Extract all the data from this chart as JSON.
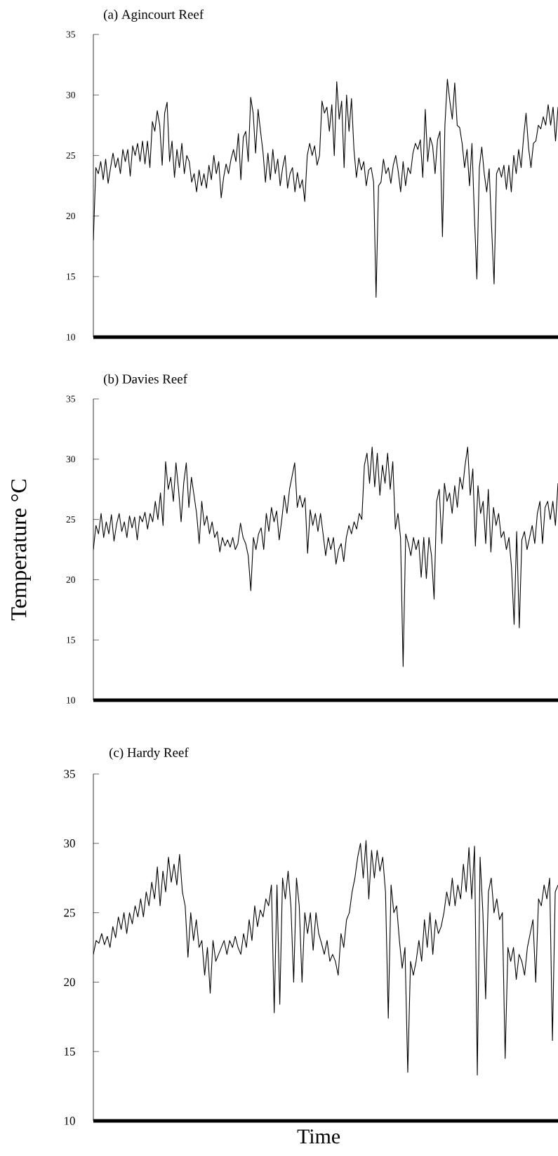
{
  "chart_data": [
    {
      "type": "line",
      "title": "(a) Agincourt Reef",
      "color": "#000000",
      "ylim": [
        10,
        35
      ],
      "yticks": [
        10,
        15,
        20,
        25,
        30,
        35
      ],
      "tick_labels": "y",
      "categories": [
        null,
        null,
        null,
        null,
        null,
        null,
        null,
        null,
        null,
        null,
        null,
        null,
        null,
        null,
        null,
        null,
        null,
        null,
        null,
        null,
        null,
        null,
        null,
        null,
        null,
        null,
        null,
        null,
        null,
        null,
        null,
        null,
        null,
        null,
        null,
        null,
        null,
        null,
        null,
        null,
        null,
        null,
        null,
        null,
        null,
        null,
        null,
        null,
        null,
        null,
        null,
        null,
        null,
        null,
        null,
        null,
        null,
        null,
        null,
        null,
        null,
        null,
        null,
        null,
        null,
        null,
        null,
        null,
        null,
        null,
        null,
        null,
        null,
        null,
        null,
        null,
        null,
        null,
        null,
        null,
        null,
        null,
        null,
        null,
        null,
        null,
        null,
        null,
        null,
        null,
        null,
        null,
        null,
        null,
        null,
        null,
        null,
        null,
        null,
        null,
        null,
        null,
        null,
        null,
        null,
        null,
        null,
        null,
        null,
        null,
        null,
        null,
        null,
        null,
        null,
        null,
        null,
        null,
        null,
        null,
        null,
        null,
        null,
        null,
        null,
        null,
        null,
        null,
        null,
        null,
        null,
        null,
        null,
        null,
        null,
        null,
        null,
        null,
        null,
        null,
        null,
        null,
        null,
        null,
        null,
        null,
        null,
        null,
        null,
        null,
        null,
        null,
        null,
        null,
        null,
        null,
        null,
        null,
        null,
        null,
        null,
        null,
        null,
        null,
        null,
        null,
        null,
        null,
        null,
        null,
        null,
        null,
        null,
        null,
        null,
        null,
        null,
        null,
        null,
        null,
        null,
        null,
        null,
        null,
        null,
        null,
        null,
        null,
        null,
        null
      ],
      "values": [
        18,
        24,
        23.5,
        24.5,
        23,
        24.7,
        22.7,
        24,
        25.2,
        24,
        24.8,
        23.5,
        25.5,
        24.5,
        25.5,
        23.3,
        25.8,
        25,
        26,
        24.5,
        26.2,
        24.3,
        26.2,
        24,
        27.8,
        27,
        28.7,
        27.5,
        24.2,
        28.5,
        29.4,
        24.5,
        26.2,
        23.2,
        25.5,
        24,
        26,
        23.5,
        25,
        24.5,
        22.8,
        23.5,
        22,
        23.8,
        22.5,
        23.5,
        22.3,
        24.2,
        23,
        25,
        23.5,
        24.5,
        21.5,
        23.2,
        24.3,
        23.5,
        24.7,
        25.5,
        24.5,
        26.8,
        23,
        26.5,
        27,
        24.5,
        29.8,
        28.5,
        25.2,
        28.8,
        27,
        25.3,
        22.8,
        25.2,
        23,
        25.5,
        23.5,
        24.7,
        22.5,
        24,
        25,
        22.3,
        23.5,
        24,
        22,
        23.6,
        22.3,
        23,
        21.2,
        25,
        26,
        25,
        25.8,
        24.2,
        25,
        29.5,
        28.5,
        29,
        27,
        29.2,
        25,
        31.1,
        28,
        29.5,
        24,
        30,
        27,
        29.7,
        25.5,
        23.2,
        24.8,
        23.8,
        24.5,
        22.5,
        23.8,
        24,
        22.8,
        13.3,
        22.5,
        22.8,
        24.7,
        23.5,
        24,
        22.7,
        24.2,
        25,
        23.7,
        22,
        24.5,
        22.5,
        24,
        23.5,
        25.2,
        26,
        25.5,
        26.3,
        23.2,
        28.8,
        24.5,
        26.5,
        25.8,
        23.5,
        26.3,
        27,
        18.3,
        27.5,
        31.3,
        29.5,
        28,
        31,
        27.5,
        27.3,
        26,
        24,
        25.5,
        22.5,
        26,
        20,
        14.8,
        24,
        25.7,
        23.5,
        22,
        23.9,
        19,
        14.4,
        23.5,
        24,
        23.2,
        24.2,
        22.2,
        24.2,
        22,
        25,
        23.5,
        25.5,
        24,
        26.5,
        28.5,
        25.7,
        24,
        26,
        26.2,
        27.5,
        27.2,
        28.2,
        27.5,
        29.2,
        27.5,
        29,
        26.2,
        29
      ]
    },
    {
      "type": "line",
      "title": "(b) Davies Reef",
      "ylabel": "Temperature  °C",
      "color": "#000000",
      "ylim": [
        10,
        35
      ],
      "yticks": [
        10,
        15,
        20,
        25,
        30,
        35
      ],
      "tick_labels": "y",
      "categories": [
        null,
        null,
        null,
        null,
        null,
        null,
        null,
        null,
        null,
        null,
        null,
        null,
        null,
        null,
        null,
        null,
        null,
        null,
        null,
        null,
        null,
        null,
        null,
        null,
        null,
        null,
        null,
        null,
        null,
        null,
        null,
        null,
        null,
        null,
        null,
        null,
        null,
        null,
        null,
        null,
        null,
        null,
        null,
        null,
        null,
        null,
        null,
        null,
        null,
        null,
        null,
        null,
        null,
        null,
        null,
        null,
        null,
        null,
        null,
        null,
        null,
        null,
        null,
        null,
        null,
        null,
        null,
        null,
        null,
        null,
        null,
        null,
        null,
        null,
        null,
        null,
        null,
        null,
        null,
        null,
        null,
        null,
        null,
        null,
        null,
        null,
        null,
        null,
        null,
        null,
        null,
        null,
        null,
        null,
        null,
        null,
        null,
        null,
        null,
        null,
        null,
        null,
        null,
        null,
        null,
        null,
        null,
        null,
        null,
        null,
        null,
        null,
        null,
        null,
        null,
        null,
        null,
        null,
        null,
        null,
        null,
        null,
        null,
        null,
        null,
        null,
        null,
        null,
        null,
        null,
        null,
        null,
        null,
        null,
        null,
        null,
        null,
        null,
        null,
        null,
        null,
        null,
        null,
        null,
        null,
        null,
        null,
        null,
        null,
        null,
        null,
        null,
        null,
        null,
        null,
        null,
        null,
        null,
        null,
        null,
        null,
        null,
        null,
        null,
        null,
        null,
        null,
        null,
        null,
        null,
        null,
        null,
        null,
        null,
        null,
        null,
        null,
        null,
        null,
        null,
        null
      ],
      "values": [
        22.5,
        24.5,
        23.8,
        25.5,
        23.5,
        24.8,
        23.8,
        25.4,
        23.2,
        24.6,
        25.5,
        24,
        24.8,
        23.5,
        25.3,
        24.3,
        25.2,
        23.3,
        25.3,
        24.8,
        25.6,
        24.2,
        25.5,
        24.8,
        26.5,
        25,
        27.2,
        24.5,
        29.8,
        27.5,
        28.5,
        26.5,
        29.7,
        27.5,
        24.8,
        28,
        29.7,
        26,
        28.5,
        27,
        25.5,
        23,
        26.5,
        24.5,
        25.3,
        23.8,
        24.8,
        23.5,
        24,
        22.3,
        23.5,
        22.8,
        23.3,
        22.7,
        23.5,
        22.5,
        23,
        24.7,
        23.5,
        23,
        22,
        19.1,
        23.5,
        22.5,
        23.8,
        24.3,
        22.5,
        25.5,
        24,
        26,
        24.8,
        25.7,
        23.3,
        25,
        27,
        25.5,
        27.5,
        28.6,
        29.7,
        26,
        27,
        26,
        26.8,
        22.2,
        25.8,
        24.5,
        25.5,
        24,
        25.5,
        23.8,
        22,
        23.5,
        22.5,
        23.5,
        21.3,
        22.5,
        23,
        21.5,
        23.5,
        24.5,
        23.8,
        24.8,
        24.2,
        25.5,
        25,
        29.5,
        30.5,
        28,
        31,
        27.7,
        30.5,
        27,
        29.5,
        28,
        30.5,
        27.5,
        29.8,
        24.2,
        25.5,
        23.5,
        12.8,
        23.8,
        23,
        22,
        23.5,
        22.5,
        23.3,
        20.2,
        23.5,
        20.1,
        23.5,
        22,
        18.4,
        26.5,
        27.5,
        23,
        28,
        26.5,
        27.2,
        25.5,
        27.8,
        26,
        28.5,
        27.5,
        29.5,
        31,
        27,
        29.2,
        22.8,
        27.8,
        25.5,
        26.5,
        23,
        27.5,
        22.3,
        26,
        24.5,
        25.5,
        23.5,
        24,
        22.5,
        23.5,
        21,
        16.3,
        24,
        16,
        23.3,
        24,
        22.5,
        23.5,
        24.5,
        23,
        25.5,
        26.5,
        23,
        26,
        26.5,
        25,
        26.5,
        24.5,
        28
      ]
    },
    {
      "type": "line",
      "title": "(c) Hardy Reef",
      "xlabel": "Time",
      "color": "#000000",
      "ylim": [
        10,
        35
      ],
      "yticks": [
        10,
        15,
        20,
        25,
        30,
        35
      ],
      "tick_labels": "y",
      "categories": [
        null,
        null,
        null,
        null,
        null,
        null,
        null,
        null,
        null,
        null,
        null,
        null,
        null,
        null,
        null,
        null,
        null,
        null,
        null,
        null,
        null,
        null,
        null,
        null,
        null,
        null,
        null,
        null,
        null,
        null,
        null,
        null,
        null,
        null,
        null,
        null,
        null,
        null,
        null,
        null,
        null,
        null,
        null,
        null,
        null,
        null,
        null,
        null,
        null,
        null,
        null,
        null,
        null,
        null,
        null,
        null,
        null,
        null,
        null,
        null,
        null,
        null,
        null,
        null,
        null,
        null,
        null,
        null,
        null,
        null,
        null,
        null,
        null,
        null,
        null,
        null,
        null,
        null,
        null,
        null,
        null,
        null,
        null,
        null,
        null,
        null,
        null,
        null,
        null,
        null,
        null,
        null,
        null,
        null,
        null,
        null,
        null,
        null,
        null,
        null,
        null,
        null,
        null,
        null,
        null,
        null,
        null,
        null,
        null,
        null,
        null,
        null,
        null,
        null,
        null,
        null,
        null,
        null,
        null,
        null,
        null,
        null,
        null,
        null,
        null,
        null,
        null,
        null,
        null,
        null,
        null,
        null,
        null,
        null,
        null,
        null,
        null,
        null,
        null,
        null,
        null,
        null,
        null,
        null,
        null,
        null,
        null,
        null,
        null,
        null,
        null,
        null,
        null,
        null,
        null,
        null,
        null,
        null,
        null,
        null,
        null,
        null,
        null,
        null,
        null,
        null,
        null,
        null
      ],
      "values": [
        22,
        23,
        22.8,
        23.5,
        22.7,
        23.3,
        22.5,
        24,
        23.2,
        24.7,
        23.8,
        25,
        23.5,
        25,
        24.2,
        25.5,
        24.7,
        26,
        24.7,
        26.5,
        25.5,
        27.2,
        26,
        28.3,
        25.5,
        28,
        26.5,
        29,
        27.2,
        28.5,
        27,
        29.2,
        26.5,
        25.5,
        21.8,
        25,
        23,
        24.5,
        22.5,
        23,
        20.5,
        22.5,
        19.2,
        23,
        21.5,
        22,
        22.5,
        23,
        22,
        23,
        22.5,
        23.3,
        22.5,
        22,
        23.5,
        22.5,
        24.5,
        23,
        25.5,
        24,
        25.2,
        24.7,
        26,
        25.5,
        27,
        17.8,
        27,
        18.4,
        27.5,
        26,
        28,
        25.5,
        20,
        27.5,
        25.5,
        20,
        25,
        23.5,
        25,
        22.3,
        25,
        23.5,
        22.8,
        22,
        23,
        21.5,
        22,
        21.5,
        20.5,
        23.5,
        22.5,
        24.5,
        25,
        26.5,
        27.5,
        29,
        30,
        27.5,
        30.2,
        26,
        29.5,
        27.5,
        29.5,
        28,
        29,
        26.5,
        17.4,
        27,
        25,
        25.5,
        23,
        21,
        22.5,
        13.5,
        21.5,
        20.5,
        21.5,
        23,
        21.5,
        24.5,
        22.5,
        25,
        22,
        24.5,
        23.5,
        24,
        25,
        26.5,
        25.5,
        27.5,
        25.5,
        27,
        26,
        28.5,
        26.5,
        29.7,
        26,
        29.8,
        13.3,
        29,
        25,
        18.8,
        26.5,
        27.5,
        25,
        26,
        24.5,
        25,
        14.5,
        22.5,
        21.5,
        22.5,
        20.2,
        22,
        21.5,
        20.5,
        22.5,
        23.5,
        24.5,
        20,
        26,
        25.5,
        27,
        26,
        27.5,
        15.8,
        26.5,
        27
      ]
    }
  ]
}
